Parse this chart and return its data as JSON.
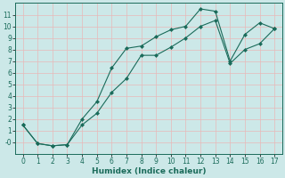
{
  "xlabel": "Humidex (Indice chaleur)",
  "ylabel": "",
  "xlim": [
    -0.5,
    17.5
  ],
  "ylim": [
    -1.0,
    12.0
  ],
  "xticks": [
    0,
    1,
    2,
    3,
    4,
    5,
    6,
    7,
    8,
    9,
    10,
    11,
    12,
    13,
    14,
    15,
    16,
    17
  ],
  "yticks": [
    0,
    1,
    2,
    3,
    4,
    5,
    6,
    7,
    8,
    9,
    10,
    11
  ],
  "bg_color": "#cce8e8",
  "grid_color": "#e8b8b8",
  "line_color": "#1a6b5a",
  "series1_x": [
    0,
    1,
    2,
    3,
    4,
    5,
    6,
    7,
    8,
    9,
    10,
    11,
    12,
    13,
    14,
    15,
    16,
    17
  ],
  "series1_y": [
    1.5,
    -0.1,
    -0.3,
    -0.2,
    2.0,
    3.5,
    6.4,
    8.1,
    8.3,
    9.1,
    9.7,
    10.0,
    11.5,
    11.3,
    7.0,
    9.3,
    10.3,
    9.8
  ],
  "series2_x": [
    0,
    1,
    2,
    3,
    4,
    5,
    6,
    7,
    8,
    9,
    10,
    11,
    12,
    13,
    14,
    15,
    16,
    17
  ],
  "series2_y": [
    1.5,
    -0.1,
    -0.3,
    -0.2,
    1.5,
    2.5,
    4.3,
    5.5,
    7.5,
    7.5,
    8.2,
    9.0,
    10.0,
    10.5,
    6.8,
    8.0,
    8.5,
    9.8
  ],
  "marker": "D",
  "markersize": 2.0,
  "linewidth": 0.8,
  "font_color": "#1a6b5a",
  "tick_fontsize": 5.5,
  "xlabel_fontsize": 6.5
}
